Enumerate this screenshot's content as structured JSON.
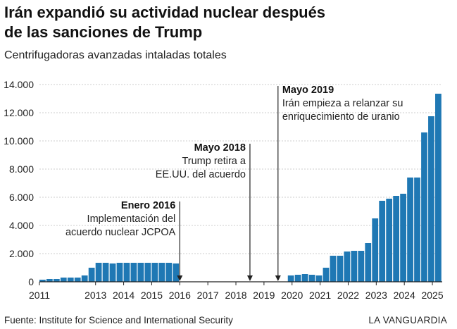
{
  "header": {
    "title_line1": "Irán expandió su actividad nuclear después",
    "title_line2": "de las sanciones de Trump",
    "subtitle": "Centrifugadoras avanzadas intaladas totales"
  },
  "footer": {
    "source": "Fuente: Institute for Science and International Security",
    "brand": "LA VANGUARDIA"
  },
  "colors": {
    "bar": "#1f78b4",
    "annotation_line": "#222222",
    "gridline": "#cccccc"
  },
  "chart_data": {
    "type": "bar",
    "title": "Irán expandió su actividad nuclear después de las sanciones de Trump",
    "ylabel": "",
    "xlabel": "",
    "ylim": [
      0,
      14000
    ],
    "yticks": [
      0,
      2000,
      4000,
      6000,
      8000,
      10000,
      12000,
      14000
    ],
    "ytick_labels": [
      "0",
      "2.000",
      "4.000",
      "6.000",
      "8.000",
      "10.000",
      "12.000",
      "14.000"
    ],
    "xlim": [
      2011,
      2025.35
    ],
    "xticks": [
      2011,
      2013,
      2014,
      2015,
      2016,
      2017,
      2018,
      2019,
      2020,
      2021,
      2022,
      2023,
      2024,
      2025
    ],
    "grid": "horizontal",
    "x": [
      2011.0,
      2011.25,
      2011.5,
      2011.75,
      2012.0,
      2012.25,
      2012.5,
      2012.75,
      2013.0,
      2013.25,
      2013.5,
      2013.75,
      2014.0,
      2014.25,
      2014.5,
      2014.75,
      2015.0,
      2015.25,
      2015.5,
      2015.75,
      2019.85,
      2020.1,
      2020.35,
      2020.6,
      2020.85,
      2021.1,
      2021.35,
      2021.6,
      2021.85,
      2022.1,
      2022.35,
      2022.6,
      2022.85,
      2023.1,
      2023.35,
      2023.6,
      2023.85,
      2024.1,
      2024.35,
      2024.6,
      2024.85,
      2025.1
    ],
    "values": [
      150,
      200,
      200,
      300,
      300,
      300,
      450,
      1000,
      1350,
      1350,
      1300,
      1350,
      1350,
      1350,
      1350,
      1350,
      1350,
      1350,
      1350,
      1300,
      450,
      500,
      550,
      500,
      450,
      1000,
      1850,
      1850,
      2150,
      2200,
      2200,
      2750,
      4500,
      5750,
      5900,
      6100,
      6250,
      7400,
      7400,
      10600,
      11750,
      13350
    ],
    "annotations": [
      {
        "x": 2016.0,
        "label_bold": "Enero 2016",
        "label_lines": [
          "Implementación del",
          "acuerdo nuclear JCPOA"
        ]
      },
      {
        "x": 2018.5,
        "label_bold": "Mayo 2018",
        "label_lines": [
          "Trump retira a",
          "EE.UU. del acuerdo"
        ]
      },
      {
        "x": 2019.5,
        "label_bold": "Mayo 2019",
        "label_lines": [
          "Irán empieza a relanzar su",
          "enriquecimiento de uranio"
        ]
      }
    ]
  }
}
